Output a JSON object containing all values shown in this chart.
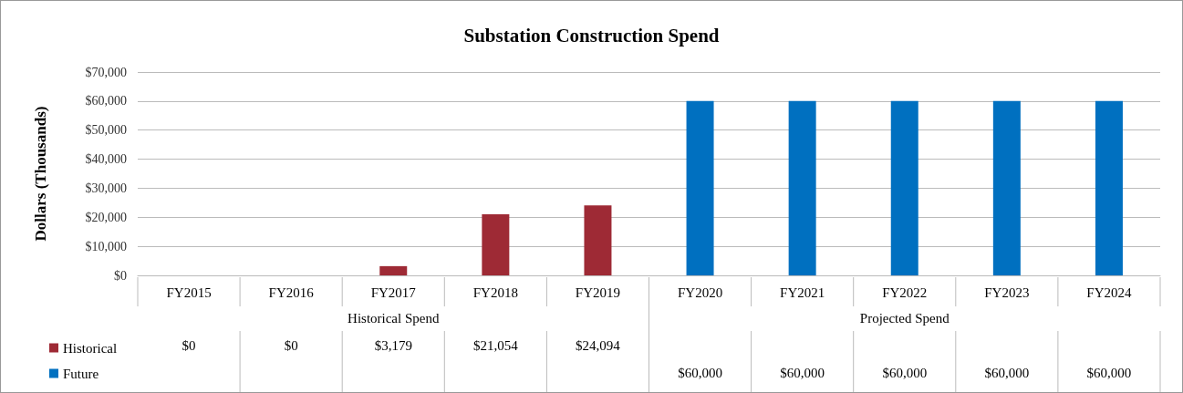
{
  "chart_data": {
    "type": "bar",
    "title": "Substation Construction Spend",
    "ylabel": "Dollars (Thousands)",
    "categories": [
      "FY2015",
      "FY2016",
      "FY2017",
      "FY2018",
      "FY2019",
      "FY2020",
      "FY2021",
      "FY2022",
      "FY2023",
      "FY2024"
    ],
    "series": [
      {
        "name": "Historical",
        "color": "#9e2a35",
        "values": [
          0,
          0,
          3179,
          21054,
          24094,
          null,
          null,
          null,
          null,
          null
        ],
        "value_labels": [
          "$0",
          "$0",
          "$3,179",
          "$21,054",
          "$24,094",
          null,
          null,
          null,
          null,
          null
        ]
      },
      {
        "name": "Future",
        "color": "#0070c0",
        "values": [
          null,
          null,
          null,
          null,
          null,
          60000,
          60000,
          60000,
          60000,
          60000
        ],
        "value_labels": [
          null,
          null,
          null,
          null,
          null,
          "$60,000",
          "$60,000",
          "$60,000",
          "$60,000",
          "$60,000"
        ]
      }
    ],
    "annotations": [
      "Historical Spend",
      "Projected Spend"
    ],
    "ylim": [
      0,
      70000
    ],
    "yticks": [
      {
        "value": 0,
        "label": "$0"
      },
      {
        "value": 10000,
        "label": "$10,000"
      },
      {
        "value": 20000,
        "label": "$20,000"
      },
      {
        "value": 30000,
        "label": "$30,000"
      },
      {
        "value": 40000,
        "label": "$40,000"
      },
      {
        "value": 50000,
        "label": "$50,000"
      },
      {
        "value": 60000,
        "label": "$60,000"
      },
      {
        "value": 70000,
        "label": "$70,000"
      }
    ],
    "grid": "y",
    "legend": "bottom left"
  }
}
